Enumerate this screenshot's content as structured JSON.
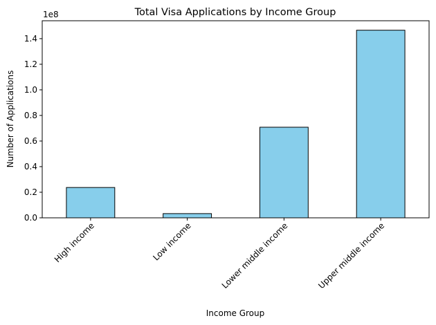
{
  "chart_data": {
    "type": "bar",
    "title": "Total Visa Applications by Income Group",
    "xlabel": "Income Group",
    "ylabel": "Number of Applications",
    "offset_label": "1e8",
    "categories": [
      "High income",
      "Low income",
      "Lower middle income",
      "Upper middle income"
    ],
    "values": [
      23700000,
      3300000,
      70800000,
      146600000
    ],
    "ylim": [
      0,
      154000000
    ],
    "yticks": [
      0,
      20000000,
      40000000,
      60000000,
      80000000,
      100000000,
      120000000,
      140000000
    ],
    "ytick_labels": [
      "0.0",
      "0.2",
      "0.4",
      "0.6",
      "0.8",
      "1.0",
      "1.2",
      "1.4"
    ],
    "grid": false,
    "colors": {
      "bar_fill": "#87ceeb",
      "bar_edge": "#000000",
      "axis": "#000000"
    }
  }
}
